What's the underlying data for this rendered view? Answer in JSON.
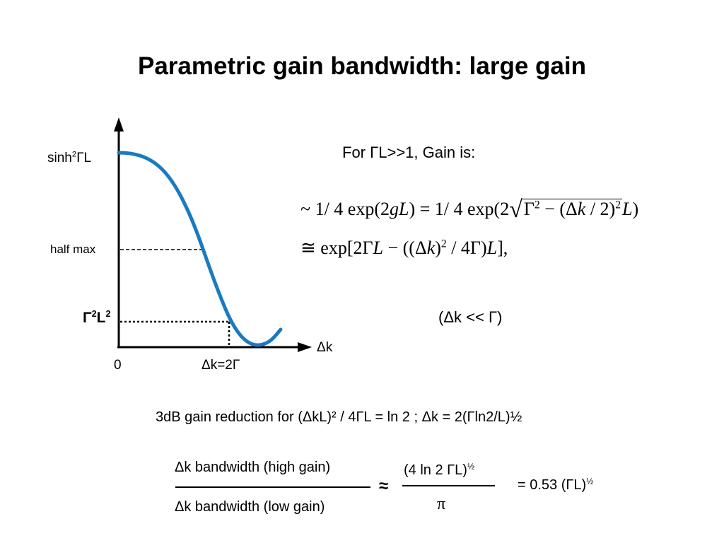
{
  "title": "Parametric gain bandwidth: large gain",
  "plot": {
    "y_label_top": "sinh",
    "y_label_top_sup": "2",
    "y_label_top_rest": "ΓL",
    "half_max": "half max",
    "y_low_label": "Γ",
    "y_low_sup1": "2",
    "y_low_mid": "L",
    "y_low_sup2": "2",
    "x_axis_label": "Δk",
    "origin_label": "0",
    "x_mark_label": "Δk=2Γ",
    "curve_color": "#1a7bbf"
  },
  "gain_intro": "For ΓL>>1, Gain is:",
  "eq1": {
    "prefix": "~ 1/ 4 exp(2",
    "g": "g",
    "L1": "L",
    "mid": ") = 1/ 4 exp(2",
    "radicand_a": "Γ",
    "radicand_a_sup": "2",
    "radicand_b": " − (Δ",
    "k": "k",
    "radicand_c": " / 2)",
    "radicand_c_sup": "2",
    "L2": "L",
    "close": ")"
  },
  "eq2": {
    "prefix": "≅ exp[2Γ",
    "L1": "L",
    "mid1": " − ((Δ",
    "k": "k",
    "mid2": ")",
    "sup": "2",
    "mid3": " / 4Γ)",
    "L2": "L",
    "close": "],"
  },
  "condition": "(Δk << Γ)",
  "reduction": "3dB gain reduction for (ΔkL)² / 4ΓL = ln 2 ; Δk = 2(Γln2/L)½",
  "ratio": {
    "numerator": "Δk bandwidth (high gain)",
    "denominator": "Δk bandwidth (low gain)",
    "approx": "≈",
    "right_numerator": "(4 ln 2 ΓL)",
    "right_numerator_sup": "½",
    "right_denominator": "π",
    "result": "=  0.53 (ΓL)",
    "result_sup": "½"
  }
}
